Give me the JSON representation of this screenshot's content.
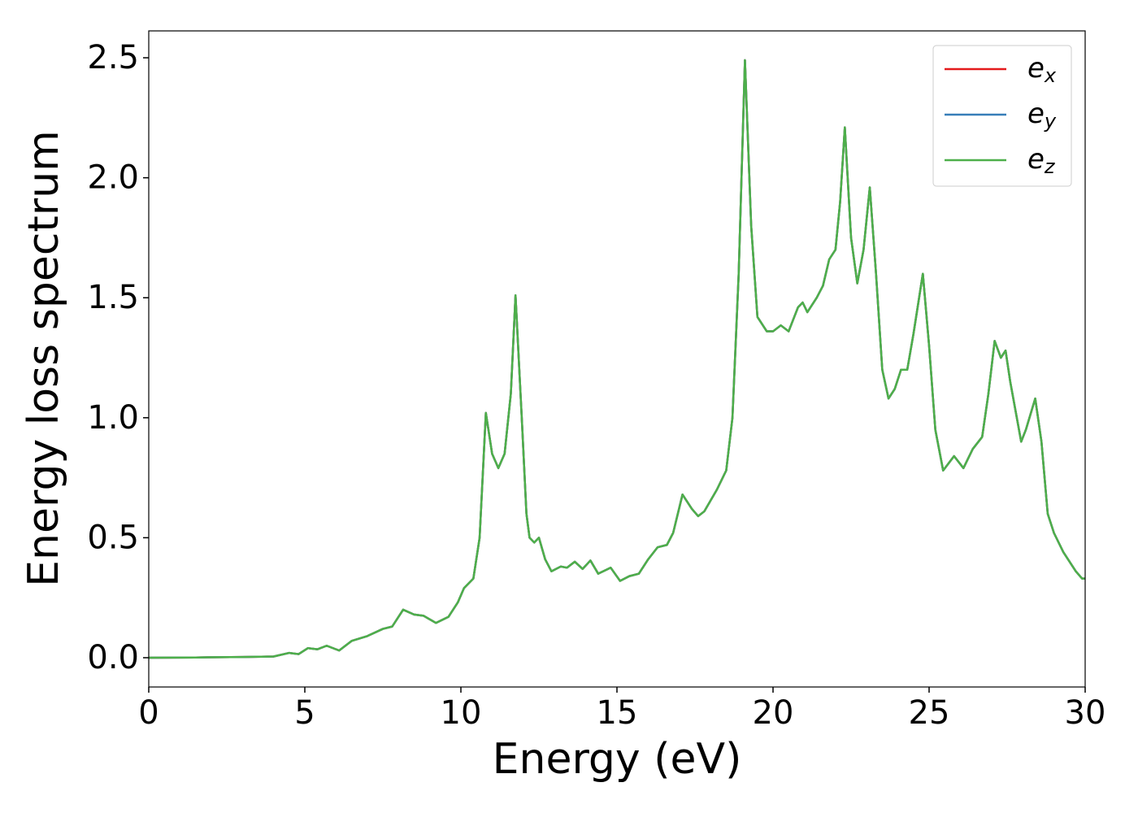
{
  "chart_data": {
    "type": "line",
    "xlabel": "Energy (eV)",
    "ylabel": "Energy loss spectrum",
    "x": [
      0,
      1.5,
      3,
      4,
      4.5,
      4.8,
      5.1,
      5.4,
      5.7,
      6.1,
      6.5,
      7,
      7.5,
      7.8,
      8.15,
      8.5,
      8.8,
      9.2,
      9.6,
      9.9,
      10.1,
      10.4,
      10.6,
      10.8,
      11,
      11.2,
      11.4,
      11.6,
      11.75,
      11.95,
      12.1,
      12.2,
      12.35,
      12.5,
      12.7,
      12.9,
      13.2,
      13.4,
      13.65,
      13.9,
      14.15,
      14.4,
      14.8,
      15.1,
      15.4,
      15.7,
      16,
      16.3,
      16.6,
      16.8,
      17.1,
      17.4,
      17.6,
      17.8,
      18.2,
      18.5,
      18.7,
      18.9,
      19.1,
      19.3,
      19.5,
      19.8,
      20,
      20.25,
      20.5,
      20.8,
      20.95,
      21.1,
      21.4,
      21.6,
      21.8,
      22,
      22.15,
      22.3,
      22.5,
      22.7,
      22.9,
      23.1,
      23.3,
      23.5,
      23.7,
      23.9,
      24.1,
      24.3,
      24.5,
      24.8,
      25,
      25.2,
      25.45,
      25.8,
      26.1,
      26.4,
      26.7,
      26.9,
      27.1,
      27.3,
      27.45,
      27.6,
      27.95,
      28.1,
      28.4,
      28.6,
      28.8,
      29,
      29.3,
      29.7,
      29.9,
      30
    ],
    "series": [
      {
        "name": "ex",
        "color": "#e41a1c",
        "values": [
          0,
          0.001,
          0.003,
          0.005,
          0.02,
          0.015,
          0.04,
          0.035,
          0.05,
          0.03,
          0.07,
          0.09,
          0.12,
          0.13,
          0.2,
          0.18,
          0.175,
          0.145,
          0.17,
          0.23,
          0.29,
          0.33,
          0.5,
          1.02,
          0.85,
          0.79,
          0.85,
          1.1,
          1.51,
          1.0,
          0.6,
          0.5,
          0.48,
          0.5,
          0.41,
          0.36,
          0.38,
          0.375,
          0.4,
          0.37,
          0.405,
          0.35,
          0.375,
          0.32,
          0.34,
          0.35,
          0.41,
          0.46,
          0.47,
          0.52,
          0.68,
          0.62,
          0.59,
          0.61,
          0.7,
          0.78,
          1.0,
          1.6,
          2.49,
          1.8,
          1.42,
          1.36,
          1.36,
          1.385,
          1.36,
          1.46,
          1.48,
          1.44,
          1.5,
          1.55,
          1.66,
          1.7,
          1.9,
          2.21,
          1.75,
          1.56,
          1.7,
          1.96,
          1.6,
          1.2,
          1.08,
          1.12,
          1.2,
          1.2,
          1.35,
          1.6,
          1.3,
          0.95,
          0.78,
          0.84,
          0.79,
          0.87,
          0.92,
          1.1,
          1.32,
          1.25,
          1.28,
          1.15,
          0.9,
          0.95,
          1.08,
          0.9,
          0.6,
          0.52,
          0.44,
          0.36,
          0.33,
          0.33
        ]
      },
      {
        "name": "ey",
        "color": "#377eb8",
        "values": [
          0,
          0.001,
          0.003,
          0.005,
          0.02,
          0.015,
          0.04,
          0.035,
          0.05,
          0.03,
          0.07,
          0.09,
          0.12,
          0.13,
          0.2,
          0.18,
          0.175,
          0.145,
          0.17,
          0.23,
          0.29,
          0.33,
          0.5,
          1.02,
          0.85,
          0.79,
          0.85,
          1.1,
          1.51,
          1.0,
          0.6,
          0.5,
          0.48,
          0.5,
          0.41,
          0.36,
          0.38,
          0.375,
          0.4,
          0.37,
          0.405,
          0.35,
          0.375,
          0.32,
          0.34,
          0.35,
          0.41,
          0.46,
          0.47,
          0.52,
          0.68,
          0.62,
          0.59,
          0.61,
          0.7,
          0.78,
          1.0,
          1.6,
          2.49,
          1.8,
          1.42,
          1.36,
          1.36,
          1.385,
          1.36,
          1.46,
          1.48,
          1.44,
          1.5,
          1.55,
          1.66,
          1.7,
          1.9,
          2.21,
          1.75,
          1.56,
          1.7,
          1.96,
          1.6,
          1.2,
          1.08,
          1.12,
          1.2,
          1.2,
          1.35,
          1.6,
          1.3,
          0.95,
          0.78,
          0.84,
          0.79,
          0.87,
          0.92,
          1.1,
          1.32,
          1.25,
          1.28,
          1.15,
          0.9,
          0.95,
          1.08,
          0.9,
          0.6,
          0.52,
          0.44,
          0.36,
          0.33,
          0.33
        ]
      },
      {
        "name": "ez",
        "color": "#4daf4a",
        "values": [
          0,
          0.001,
          0.003,
          0.005,
          0.02,
          0.015,
          0.04,
          0.035,
          0.05,
          0.03,
          0.07,
          0.09,
          0.12,
          0.13,
          0.2,
          0.18,
          0.175,
          0.145,
          0.17,
          0.23,
          0.29,
          0.33,
          0.5,
          1.02,
          0.85,
          0.79,
          0.85,
          1.1,
          1.51,
          1.0,
          0.6,
          0.5,
          0.48,
          0.5,
          0.41,
          0.36,
          0.38,
          0.375,
          0.4,
          0.37,
          0.405,
          0.35,
          0.375,
          0.32,
          0.34,
          0.35,
          0.41,
          0.46,
          0.47,
          0.52,
          0.68,
          0.62,
          0.59,
          0.61,
          0.7,
          0.78,
          1.0,
          1.6,
          2.49,
          1.8,
          1.42,
          1.36,
          1.36,
          1.385,
          1.36,
          1.46,
          1.48,
          1.44,
          1.5,
          1.55,
          1.66,
          1.7,
          1.9,
          2.21,
          1.75,
          1.56,
          1.7,
          1.96,
          1.6,
          1.2,
          1.08,
          1.12,
          1.2,
          1.2,
          1.35,
          1.6,
          1.3,
          0.95,
          0.78,
          0.84,
          0.79,
          0.87,
          0.92,
          1.1,
          1.32,
          1.25,
          1.28,
          1.15,
          0.9,
          0.95,
          1.08,
          0.9,
          0.6,
          0.52,
          0.44,
          0.36,
          0.33,
          0.33
        ]
      }
    ],
    "xlim": [
      0,
      30
    ],
    "xticks": [
      0,
      5,
      10,
      15,
      20,
      25,
      30
    ],
    "ylim": [
      -0.122,
      2.612
    ],
    "yticks": [
      {
        "value": 0,
        "label": "0.0"
      },
      0.5,
      {
        "value": 1,
        "label": "1.0"
      },
      1.5,
      {
        "value": 2,
        "label": "2.0"
      },
      2.5
    ],
    "grid": false,
    "legend": "upper right"
  }
}
